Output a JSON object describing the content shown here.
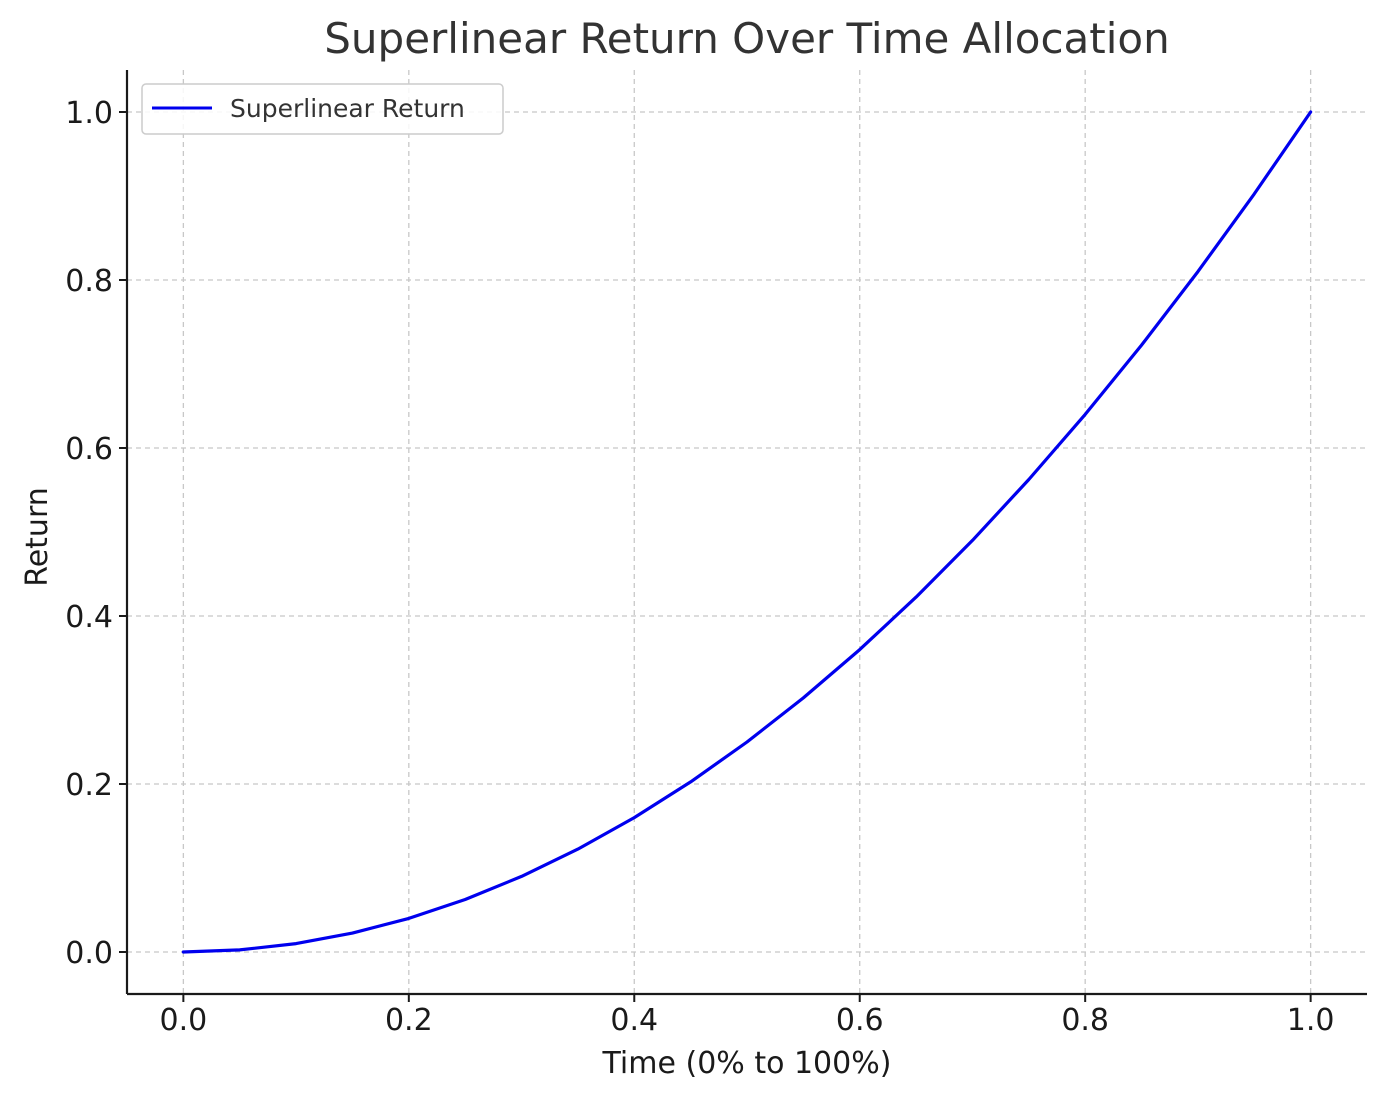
{
  "chart_data": {
    "type": "line",
    "title": "Superlinear Return Over Time Allocation",
    "xlabel": "Time (0% to 100%)",
    "ylabel": "Return",
    "xlim": [
      -0.05,
      1.05
    ],
    "ylim": [
      -0.05,
      1.05
    ],
    "xticks": [
      0.0,
      0.2,
      0.4,
      0.6,
      0.8,
      1.0
    ],
    "yticks": [
      0.0,
      0.2,
      0.4,
      0.6,
      0.8,
      1.0
    ],
    "xtick_labels": [
      "0.0",
      "0.2",
      "0.4",
      "0.6",
      "0.8",
      "1.0"
    ],
    "ytick_labels": [
      "0.0",
      "0.2",
      "0.4",
      "0.6",
      "0.8",
      "1.0"
    ],
    "grid": true,
    "legend": {
      "position": "upper-left"
    },
    "series": [
      {
        "name": "Superlinear Return",
        "color": "#0000ee",
        "x": [
          0.0,
          0.05,
          0.1,
          0.15,
          0.2,
          0.25,
          0.3,
          0.35,
          0.4,
          0.45,
          0.5,
          0.55,
          0.6,
          0.65,
          0.7,
          0.75,
          0.8,
          0.85,
          0.9,
          0.95,
          1.0
        ],
        "y": [
          0.0,
          0.0025,
          0.01,
          0.0225,
          0.04,
          0.0625,
          0.09,
          0.1225,
          0.16,
          0.2025,
          0.25,
          0.3025,
          0.36,
          0.4225,
          0.49,
          0.5625,
          0.64,
          0.7225,
          0.81,
          0.9025,
          1.0
        ]
      }
    ]
  }
}
